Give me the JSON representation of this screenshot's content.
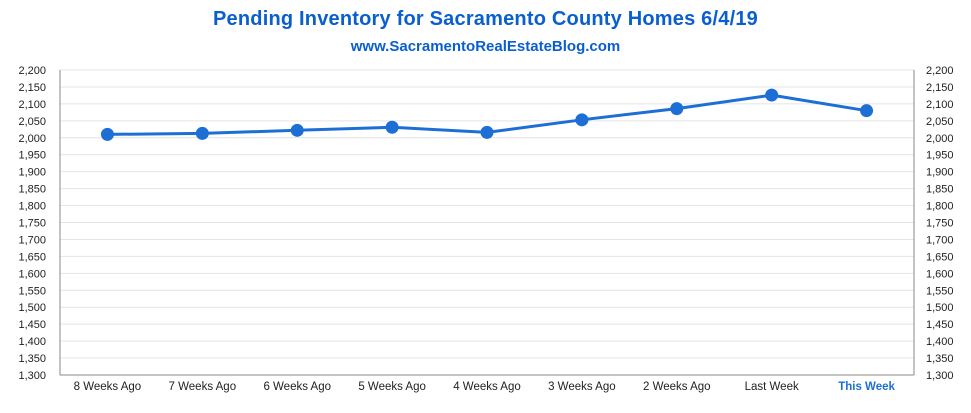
{
  "chart_data": {
    "type": "line",
    "title": "Pending Inventory for Sacramento County Homes 6/4/19",
    "subtitle": "www.SacramentoRealEstateBlog.com",
    "categories": [
      "8 Weeks Ago",
      "7 Weeks Ago",
      "6 Weeks Ago",
      "5 Weeks Ago",
      "4 Weeks Ago",
      "3 Weeks Ago",
      "2 Weeks Ago",
      "Last Week",
      "This Week"
    ],
    "highlight_category": "This Week",
    "values": [
      2010,
      2013,
      2022,
      2031,
      2016,
      2053,
      2086,
      2126,
      2080
    ],
    "ylim": [
      1300,
      2200
    ],
    "yticks": [
      "1,300",
      "1,350",
      "1,400",
      "1,450",
      "1,500",
      "1,550",
      "1,600",
      "1,650",
      "1,700",
      "1,750",
      "1,800",
      "1,850",
      "1,900",
      "1,950",
      "2,000",
      "2,050",
      "2,100",
      "2,150",
      "2,200"
    ],
    "secondary_axis": true,
    "grid": true,
    "colors": {
      "line": "#1d6fd6",
      "title": "#0a5fcf",
      "highlight_tick": "#1d6fd6"
    }
  }
}
